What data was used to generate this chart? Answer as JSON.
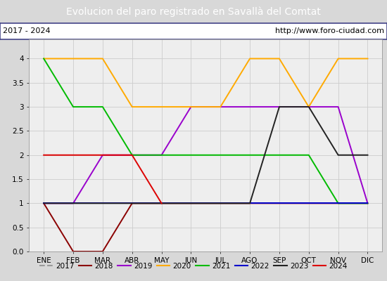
{
  "title": "Evolucion del paro registrado en Savallà del Comtat",
  "subtitle_left": "2017 - 2024",
  "subtitle_right": "http://www.foro-ciudad.com",
  "title_bg": "#5b8ec5",
  "title_color": "white",
  "subtitle_bg": "white",
  "subtitle_color": "black",
  "months": [
    "ENE",
    "FEB",
    "MAR",
    "ABR",
    "MAY",
    "JUN",
    "JUL",
    "AGO",
    "SEP",
    "OCT",
    "NOV",
    "DIC"
  ],
  "ylim": [
    0,
    4.4
  ],
  "yticks": [
    0.0,
    0.5,
    1.0,
    1.5,
    2.0,
    2.5,
    3.0,
    3.5,
    4.0
  ],
  "series": {
    "2017": {
      "color": "#999999",
      "style": "--",
      "data": [
        1,
        1,
        1,
        1,
        1,
        1,
        1,
        1,
        1,
        1,
        1,
        1
      ]
    },
    "2018": {
      "color": "#8b0000",
      "style": "-",
      "data": [
        1,
        0,
        0,
        1,
        1,
        1,
        1,
        1,
        1,
        1,
        1,
        1
      ]
    },
    "2019": {
      "color": "#9900cc",
      "style": "-",
      "data": [
        1,
        1,
        2,
        2,
        2,
        3,
        3,
        3,
        3,
        3,
        3,
        1
      ]
    },
    "2020": {
      "color": "#ffaa00",
      "style": "-",
      "data": [
        4,
        4,
        4,
        3,
        3,
        3,
        3,
        4,
        4,
        3,
        4,
        4
      ]
    },
    "2021": {
      "color": "#00bb00",
      "style": "-",
      "data": [
        4,
        3,
        3,
        2,
        2,
        2,
        2,
        2,
        2,
        2,
        1,
        1
      ]
    },
    "2022": {
      "color": "#0000cc",
      "style": "-",
      "data": [
        1,
        1,
        1,
        1,
        1,
        1,
        1,
        1,
        1,
        1,
        1,
        1
      ]
    },
    "2023": {
      "color": "#222222",
      "style": "-",
      "data": [
        1,
        1,
        1,
        1,
        1,
        1,
        1,
        1,
        3,
        3,
        2,
        2
      ]
    },
    "2024": {
      "color": "#dd0000",
      "style": "-",
      "data": [
        2,
        2,
        2,
        2,
        1,
        null,
        null,
        null,
        null,
        null,
        null,
        null
      ]
    }
  },
  "plot_bg": "#eeeeee",
  "grid_color": "#cccccc",
  "outer_bg": "#d8d8d8",
  "border_color": "#444488",
  "legend_bg": "#e8e8e8"
}
